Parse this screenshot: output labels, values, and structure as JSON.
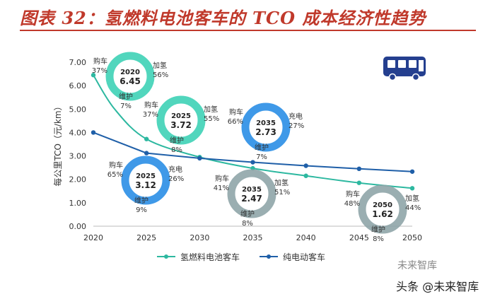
{
  "title": "图表 32：氢燃料电池客车的 TCO 成本经济性趋势",
  "colors": {
    "title_red": "#c0392b",
    "hydrogen": "#2db8a0",
    "electric": "#1f5fa8",
    "donut_teal": "#3ed1b6",
    "donut_blue": "#2a8ee6",
    "donut_gray": "#8fa5a8",
    "bus_icon": "#243f8f"
  },
  "chart_data": {
    "type": "line",
    "ylabel": "每公里TCO（元/km）",
    "xlabel": "",
    "x": [
      2020,
      2025,
      2030,
      2035,
      2040,
      2045,
      2050
    ],
    "x_ticks": [
      "2020",
      "2025",
      "2030",
      "2035",
      "2040",
      "2045",
      "2050"
    ],
    "ylim": [
      0,
      7
    ],
    "y_ticks": [
      "0.00",
      "1.00",
      "2.00",
      "3.00",
      "4.00",
      "5.00",
      "6.00",
      "7.00"
    ],
    "series": [
      {
        "name": "氢燃料电池客车",
        "color_key": "hydrogen",
        "x": [
          2020,
          2022,
          2025,
          2030,
          2035,
          2040,
          2045,
          2050
        ],
        "values": [
          6.45,
          5.0,
          3.72,
          2.95,
          2.47,
          2.15,
          1.85,
          1.62
        ]
      },
      {
        "name": "纯电动客车",
        "color_key": "electric",
        "x": [
          2020,
          2025,
          2030,
          2035,
          2040,
          2045,
          2050
        ],
        "values": [
          4.0,
          3.12,
          2.9,
          2.73,
          2.58,
          2.45,
          2.33
        ]
      }
    ],
    "legend": "bottom",
    "grid": false
  },
  "donuts": [
    {
      "year": "2020",
      "value": "6.45",
      "theme": "teal",
      "buy": "购车",
      "buy_pct": "37%",
      "fuel": "加氢",
      "fuel_pct": "56%",
      "maint": "维护",
      "maint_pct": "7%",
      "fuel_side": "right"
    },
    {
      "year": "2025",
      "value": "3.72",
      "theme": "teal",
      "buy": "购车",
      "buy_pct": "37%",
      "fuel": "加氢",
      "fuel_pct": "55%",
      "maint": "维护",
      "maint_pct": "8%",
      "fuel_side": "right"
    },
    {
      "year": "2035",
      "value": "2.73",
      "theme": "blue",
      "buy": "购车",
      "buy_pct": "66%",
      "fuel": "充电",
      "fuel_pct": "27%",
      "maint": "维护",
      "maint_pct": "7%",
      "fuel_side": "right"
    },
    {
      "year": "2025",
      "value": "3.12",
      "theme": "blue",
      "buy": "购车",
      "buy_pct": "65%",
      "fuel": "充电",
      "fuel_pct": "26%",
      "maint": "维护",
      "maint_pct": "9%",
      "fuel_side": "right"
    },
    {
      "year": "2035",
      "value": "2.47",
      "theme": "gray",
      "buy": "购车",
      "buy_pct": "41%",
      "fuel": "加氢",
      "fuel_pct": "51%",
      "maint": "维护",
      "maint_pct": "8%",
      "fuel_side": "right"
    },
    {
      "year": "2050",
      "value": "1.62",
      "theme": "gray",
      "buy": "购车",
      "buy_pct": "48%",
      "fuel": "加氢",
      "fuel_pct": "44%",
      "maint": "维护",
      "maint_pct": "8%",
      "fuel_side": "right"
    }
  ],
  "watermark": {
    "logo_text": "未来智库",
    "text": "头条 @未来智库"
  }
}
